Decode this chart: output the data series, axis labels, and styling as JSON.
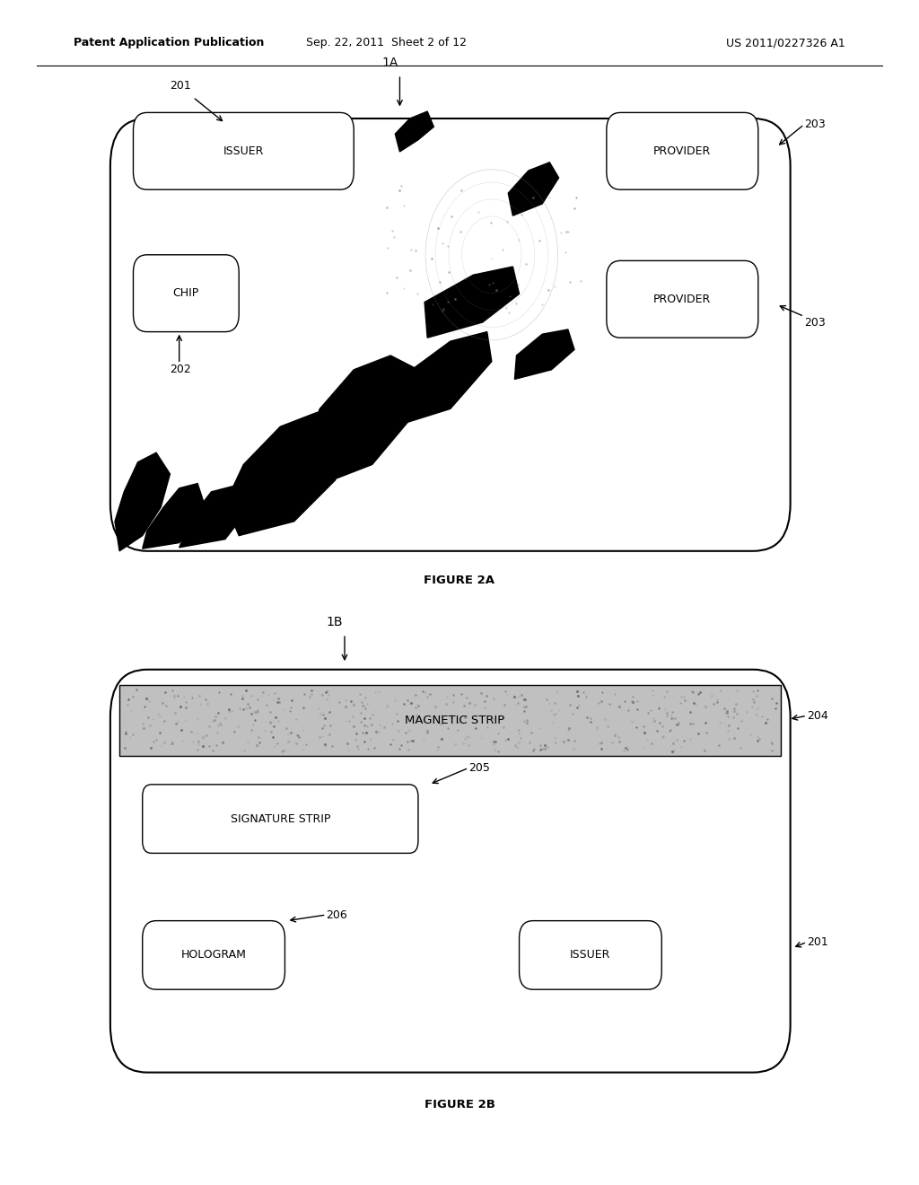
{
  "background_color": "#ffffff",
  "header_left": "Patent Application Publication",
  "header_mid": "Sep. 22, 2011  Sheet 2 of 12",
  "header_right": "US 2011/0227326 A1",
  "fig2a_label": "FIGURE 2A",
  "fig2b_label": "FIGURE 2B",
  "card1_ref": "1A",
  "card2_ref": "1B",
  "label_201_top": "201",
  "label_202": "202",
  "label_203_top": "203",
  "label_203_bot": "203",
  "label_204": "204",
  "label_205": "205",
  "label_206": "206",
  "label_201_bot": "201"
}
